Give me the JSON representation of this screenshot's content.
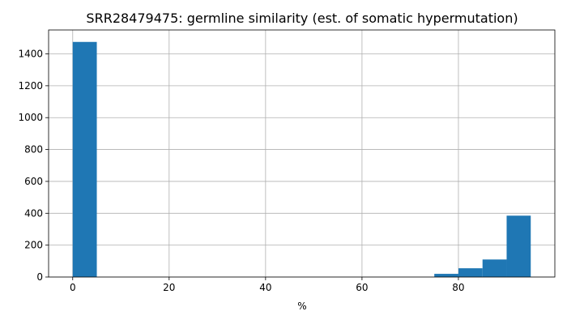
{
  "chart_data": {
    "type": "bar",
    "title": "SRR28479475: germline similarity (est. of somatic hypermutation)",
    "xlabel": "%",
    "ylabel": "",
    "xlim": [
      -5,
      100
    ],
    "ylim": [
      0,
      1550
    ],
    "grid": true,
    "colors": {
      "bar": "#1f77b4"
    },
    "x_ticks": [
      0,
      20,
      40,
      60,
      80
    ],
    "y_ticks": [
      0,
      200,
      400,
      600,
      800,
      1000,
      1200,
      1400
    ],
    "bins": [
      {
        "start": 0,
        "end": 5,
        "count": 1475
      },
      {
        "start": 75,
        "end": 80,
        "count": 20
      },
      {
        "start": 80,
        "end": 85,
        "count": 55
      },
      {
        "start": 85,
        "end": 90,
        "count": 110
      },
      {
        "start": 90,
        "end": 95,
        "count": 385
      }
    ]
  }
}
